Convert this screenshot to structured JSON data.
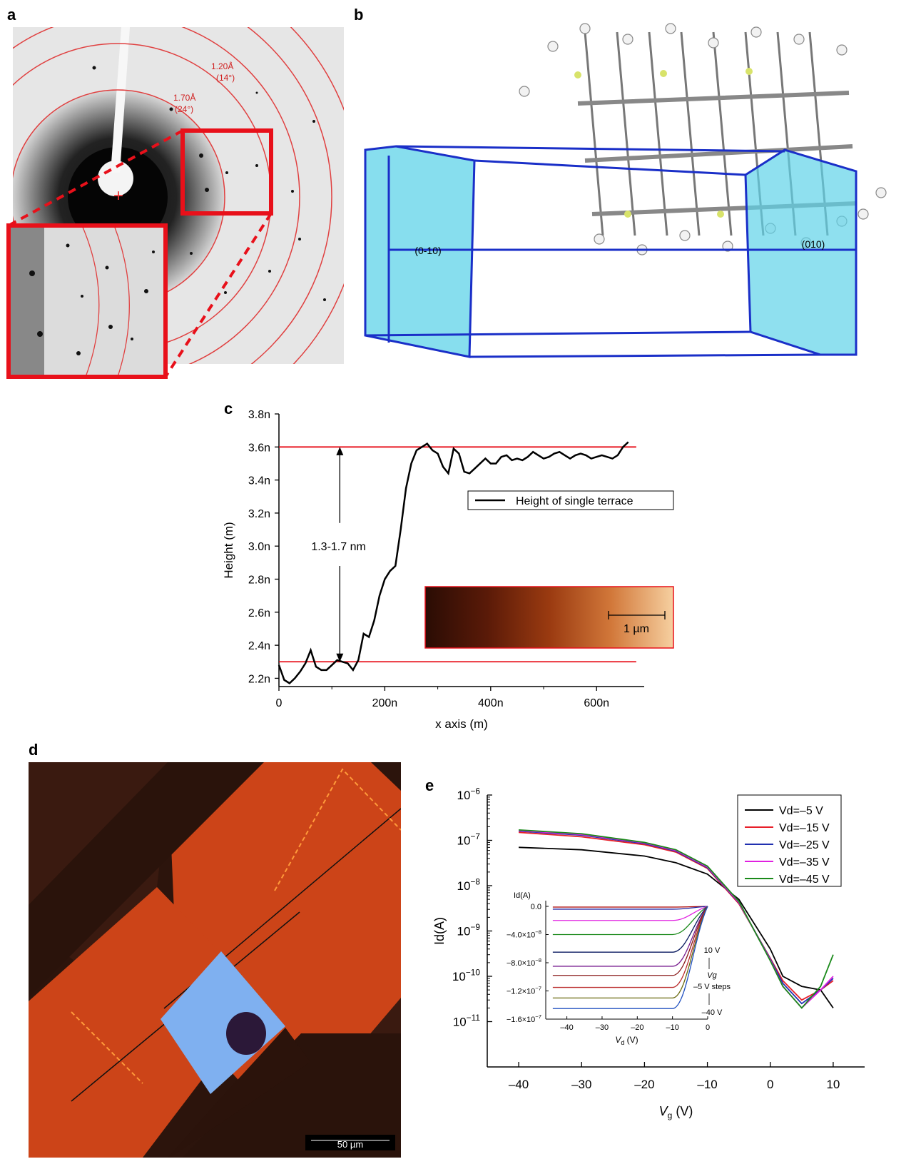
{
  "panels": {
    "a": {
      "label": "a",
      "ring1_d": "1.20Å",
      "ring1_angle": "(14°)",
      "ring2_d": "1.70Å",
      "ring2_angle": "(24°)"
    },
    "b": {
      "label": "b",
      "face_left": "(0-10)",
      "face_right": "(010)"
    },
    "c": {
      "label": "c",
      "scalebar": "1 µm",
      "step_annotation": "1.3-1.7 nm"
    },
    "d": {
      "label": "d",
      "scalebar": "50 µm"
    },
    "e": {
      "label": "e",
      "inset": {
        "step_top": "10 V",
        "step_mid": "–5 V steps",
        "step_bottom": "–40 V",
        "step_var": "Vg"
      }
    }
  },
  "chart_data": [
    {
      "type": "line",
      "panel": "c",
      "xlabel": "x axis (m)",
      "ylabel": "Height (m)",
      "xlim": [
        0,
        690
      ],
      "ylim": [
        2.15,
        3.8
      ],
      "x_ticks": [
        0,
        200,
        400,
        600
      ],
      "x_tick_labels": [
        "0",
        "200n",
        "400n",
        "600n"
      ],
      "y_ticks": [
        2.2,
        2.4,
        2.6,
        2.8,
        3.0,
        3.2,
        3.4,
        3.6,
        3.8
      ],
      "y_tick_labels": [
        "2.2n",
        "2.4n",
        "2.6n",
        "2.8n",
        "3.0n",
        "3.2n",
        "3.4n",
        "3.6n",
        "3.8n"
      ],
      "legend": "Height of single terrace",
      "legend_position": "center-right",
      "series": [
        {
          "name": "Height of single terrace",
          "x": [
            0,
            10,
            20,
            30,
            40,
            50,
            60,
            70,
            80,
            90,
            100,
            110,
            120,
            130,
            140,
            150,
            160,
            170,
            180,
            190,
            200,
            210,
            220,
            230,
            240,
            250,
            260,
            270,
            280,
            290,
            300,
            310,
            320,
            330,
            340,
            350,
            360,
            370,
            380,
            390,
            400,
            410,
            420,
            430,
            440,
            450,
            460,
            470,
            480,
            490,
            500,
            510,
            520,
            530,
            540,
            550,
            560,
            570,
            580,
            590,
            600,
            610,
            620,
            630,
            640,
            650,
            660
          ],
          "values": [
            2.28,
            2.19,
            2.17,
            2.2,
            2.24,
            2.29,
            2.37,
            2.27,
            2.25,
            2.25,
            2.28,
            2.31,
            2.3,
            2.29,
            2.25,
            2.31,
            2.47,
            2.45,
            2.55,
            2.7,
            2.8,
            2.85,
            2.88,
            3.1,
            3.35,
            3.5,
            3.58,
            3.6,
            3.62,
            3.58,
            3.56,
            3.48,
            3.44,
            3.59,
            3.56,
            3.45,
            3.44,
            3.47,
            3.5,
            3.53,
            3.5,
            3.5,
            3.54,
            3.55,
            3.52,
            3.53,
            3.52,
            3.54,
            3.57,
            3.55,
            3.53,
            3.54,
            3.56,
            3.57,
            3.55,
            3.53,
            3.55,
            3.56,
            3.55,
            3.53,
            3.54,
            3.55,
            3.54,
            3.53,
            3.55,
            3.6,
            3.63
          ]
        }
      ],
      "reference_lines_y": [
        3.6,
        2.3
      ]
    },
    {
      "type": "line",
      "panel": "e",
      "xlabel": "Vg (V)",
      "ylabel": "Id(A)",
      "yscale": "log",
      "xlim": [
        -45,
        15
      ],
      "ylim": [
        1e-12,
        1e-06
      ],
      "x_ticks": [
        -40,
        -30,
        -20,
        -10,
        0,
        10
      ],
      "x_tick_labels": [
        "–40",
        "–30",
        "–20",
        "–10",
        "0",
        "10"
      ],
      "y_ticks": [
        1e-06,
        1e-07,
        1e-08,
        1e-09,
        1e-10,
        1e-11
      ],
      "y_tick_labels": [
        "10−6",
        "10−7",
        "10−8",
        "10−9",
        "10−10",
        "10−11"
      ],
      "legend_position": "top-right",
      "series": [
        {
          "name": "Vd=–5 V",
          "color": "#000000",
          "x": [
            -40,
            -30,
            -20,
            -15,
            -10,
            -5,
            0,
            2,
            5,
            8,
            10
          ],
          "values": [
            7e-08,
            6.2e-08,
            4.5e-08,
            3.2e-08,
            1.8e-08,
            5e-09,
            4e-10,
            1e-10,
            6e-11,
            5e-11,
            2e-11
          ]
        },
        {
          "name": "Vd=–15 V",
          "color": "#e8202a",
          "x": [
            -40,
            -30,
            -20,
            -15,
            -10,
            -5,
            0,
            2,
            5,
            8,
            10
          ],
          "values": [
            1.5e-07,
            1.2e-07,
            8e-08,
            5.5e-08,
            2.4e-08,
            4e-09,
            2.5e-10,
            8e-11,
            3e-11,
            5e-11,
            8e-11
          ]
        },
        {
          "name": "Vd=–25 V",
          "color": "#2030b0",
          "x": [
            -40,
            -30,
            -20,
            -15,
            -10,
            -5,
            0,
            2,
            5,
            8,
            10
          ],
          "values": [
            1.6e-07,
            1.3e-07,
            8.5e-08,
            5.8e-08,
            2.5e-08,
            4.2e-09,
            2.4e-10,
            7e-11,
            2.5e-11,
            5e-11,
            9e-11
          ]
        },
        {
          "name": "Vd=–35 V",
          "color": "#e020e0",
          "x": [
            -40,
            -30,
            -20,
            -15,
            -10,
            -5,
            0,
            2,
            5,
            8,
            10
          ],
          "values": [
            1.65e-07,
            1.35e-07,
            8.8e-08,
            6e-08,
            2.6e-08,
            4.3e-09,
            2.3e-10,
            6e-11,
            2e-11,
            5e-11,
            1e-10
          ]
        },
        {
          "name": "Vd=–45 V",
          "color": "#1a8a1a",
          "x": [
            -40,
            -30,
            -20,
            -15,
            -10,
            -5,
            0,
            2,
            5,
            8,
            10
          ],
          "values": [
            1.7e-07,
            1.4e-07,
            9e-08,
            6.2e-08,
            2.7e-08,
            4.5e-09,
            2.2e-10,
            6e-11,
            2e-11,
            6e-11,
            3e-10
          ]
        }
      ]
    },
    {
      "type": "line",
      "panel": "e-inset",
      "xlabel": "Vd (V)",
      "ylabel": "Id(A)",
      "xlim": [
        -46,
        0
      ],
      "ylim": [
        -1.6e-07,
        0
      ],
      "x_ticks": [
        -40,
        -30,
        -20,
        -10,
        0
      ],
      "x_tick_labels": [
        "–40",
        "–30",
        "–20",
        "–10",
        "0"
      ],
      "y_ticks": [
        0,
        -4e-08,
        -8e-08,
        -1.2e-07,
        -1.6e-07
      ],
      "y_tick_labels": [
        "0.0",
        "−4.0×10−8",
        "−8.0×10−8",
        "−1.2×10−7",
        "−1.6×10−7"
      ],
      "series": [
        {
          "color": "#aa0000",
          "plateau": -1e-09
        },
        {
          "color": "#2020a0",
          "plateau": -4e-09
        },
        {
          "color": "#e020e0",
          "plateau": -2e-08
        },
        {
          "color": "#1a8a1a",
          "plateau": -4e-08
        },
        {
          "color": "#0a1a60",
          "plateau": -6.5e-08
        },
        {
          "color": "#7a2090",
          "plateau": -8.5e-08
        },
        {
          "color": "#8a1a1a",
          "plateau": -9.8e-08
        },
        {
          "color": "#bb3030",
          "plateau": -1.15e-07
        },
        {
          "color": "#6a6a10",
          "plateau": -1.3e-07
        },
        {
          "color": "#2050c0",
          "plateau": -1.45e-07
        }
      ]
    }
  ]
}
